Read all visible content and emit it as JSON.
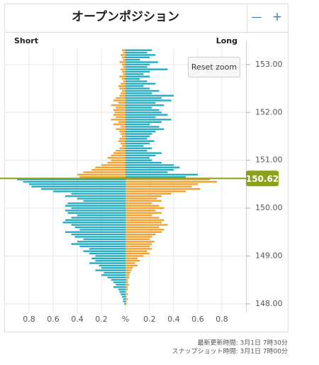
{
  "chart_data": {
    "type": "butterfly",
    "title": "オープンポジション",
    "current_price": 150.62,
    "prices": [
      153.3,
      153.25,
      153.2,
      153.15,
      153.1,
      153.05,
      153.0,
      152.95,
      152.9,
      152.85,
      152.8,
      152.75,
      152.7,
      152.65,
      152.6,
      152.55,
      152.5,
      152.45,
      152.4,
      152.35,
      152.3,
      152.25,
      152.2,
      152.15,
      152.1,
      152.05,
      152.0,
      151.95,
      151.9,
      151.85,
      151.8,
      151.75,
      151.7,
      151.65,
      151.6,
      151.55,
      151.5,
      151.45,
      151.4,
      151.35,
      151.3,
      151.25,
      151.2,
      151.15,
      151.1,
      151.05,
      151.0,
      150.95,
      150.9,
      150.85,
      150.8,
      150.75,
      150.7,
      150.65,
      150.6,
      150.55,
      150.5,
      150.45,
      150.4,
      150.35,
      150.3,
      150.25,
      150.2,
      150.15,
      150.1,
      150.05,
      150.0,
      149.95,
      149.9,
      149.85,
      149.8,
      149.75,
      149.7,
      149.65,
      149.6,
      149.55,
      149.5,
      149.45,
      149.4,
      149.35,
      149.3,
      149.25,
      149.2,
      149.15,
      149.1,
      149.05,
      149.0,
      148.95,
      148.9,
      148.85,
      148.8,
      148.75,
      148.7,
      148.65,
      148.6,
      148.55,
      148.5,
      148.45,
      148.4,
      148.35,
      148.3,
      148.25,
      148.2,
      148.15,
      148.1,
      148.05,
      148.0
    ],
    "series": [
      {
        "name": "Short",
        "side": "left",
        "color_above": "#f0a132",
        "color_below": "#26adc2",
        "values": [
          0.03,
          0.02,
          0.04,
          0.03,
          0.02,
          0.05,
          0.03,
          0.02,
          0.04,
          0.03,
          0.02,
          0.05,
          0.03,
          0.02,
          0.04,
          0.06,
          0.05,
          0.03,
          0.04,
          0.05,
          0.08,
          0.1,
          0.06,
          0.12,
          0.08,
          0.1,
          0.09,
          0.1,
          0.08,
          0.12,
          0.06,
          0.1,
          0.04,
          0.08,
          0.05,
          0.04,
          0.03,
          0.05,
          0.06,
          0.04,
          0.03,
          0.05,
          0.08,
          0.1,
          0.12,
          0.15,
          0.12,
          0.15,
          0.2,
          0.25,
          0.28,
          0.35,
          0.4,
          0.38,
          0.9,
          0.85,
          0.8,
          0.78,
          0.7,
          0.6,
          0.45,
          0.5,
          0.4,
          0.35,
          0.48,
          0.5,
          0.45,
          0.5,
          0.48,
          0.4,
          0.45,
          0.5,
          0.52,
          0.45,
          0.42,
          0.38,
          0.5,
          0.45,
          0.42,
          0.35,
          0.4,
          0.45,
          0.38,
          0.3,
          0.35,
          0.3,
          0.25,
          0.28,
          0.25,
          0.3,
          0.22,
          0.2,
          0.25,
          0.18,
          0.2,
          0.15,
          0.12,
          0.1,
          0.08,
          0.1,
          0.06,
          0.05,
          0.04,
          0.03,
          0.02,
          0.02,
          0.01
        ]
      },
      {
        "name": "Long",
        "side": "right",
        "color_above": "#26adc2",
        "color_below": "#f0a132",
        "values": [
          0.22,
          0.18,
          0.25,
          0.2,
          0.12,
          0.27,
          0.2,
          0.18,
          0.35,
          0.2,
          0.15,
          0.2,
          0.12,
          0.18,
          0.25,
          0.15,
          0.2,
          0.28,
          0.22,
          0.4,
          0.3,
          0.38,
          0.25,
          0.32,
          0.22,
          0.28,
          0.3,
          0.35,
          0.25,
          0.38,
          0.3,
          0.2,
          0.28,
          0.32,
          0.25,
          0.22,
          0.2,
          0.18,
          0.24,
          0.2,
          0.15,
          0.22,
          0.18,
          0.3,
          0.25,
          0.2,
          0.22,
          0.3,
          0.4,
          0.45,
          0.4,
          0.35,
          0.6,
          0.5,
          0.7,
          0.76,
          0.6,
          0.55,
          0.62,
          0.5,
          0.38,
          0.3,
          0.26,
          0.3,
          0.22,
          0.28,
          0.32,
          0.25,
          0.3,
          0.22,
          0.28,
          0.32,
          0.3,
          0.35,
          0.28,
          0.32,
          0.3,
          0.25,
          0.22,
          0.2,
          0.24,
          0.22,
          0.2,
          0.22,
          0.18,
          0.2,
          0.15,
          0.1,
          0.12,
          0.08,
          0.1,
          0.06,
          0.05,
          0.04,
          0.03,
          0.03,
          0.02,
          0.02,
          0.03,
          0.02,
          0.02,
          0.01,
          0.02,
          0.01,
          0.02,
          0.01,
          0.01
        ]
      }
    ],
    "current_price_color": "#8aa21a",
    "xlim": [
      -1,
      1
    ],
    "xticks": [
      {
        "value": -0.8,
        "label": "0.8"
      },
      {
        "value": -0.6,
        "label": "0.6"
      },
      {
        "value": -0.4,
        "label": "0.4"
      },
      {
        "value": -0.2,
        "label": "0.2"
      },
      {
        "value": 0,
        "label": "%"
      },
      0.2,
      0.4,
      0.6,
      0.8
    ],
    "ylim": [
      147.82,
      153.34
    ],
    "yticks": [
      {
        "value": 148,
        "label": "148.00"
      },
      {
        "value": 149,
        "label": "149.00"
      },
      {
        "value": 150,
        "label": "150.00"
      },
      {
        "value": 151,
        "label": "151.00"
      },
      {
        "value": 152,
        "label": "152.00"
      },
      {
        "value": 153,
        "label": "153.00"
      }
    ],
    "grid": true
  },
  "controls": {
    "zoom_out": "—",
    "zoom_in": "+",
    "reset_zoom": "Reset zoom"
  },
  "footer": [
    "最新更新時間: 3月1日 7時30分",
    "スナップショット時間: 3月1日 7時00分"
  ]
}
